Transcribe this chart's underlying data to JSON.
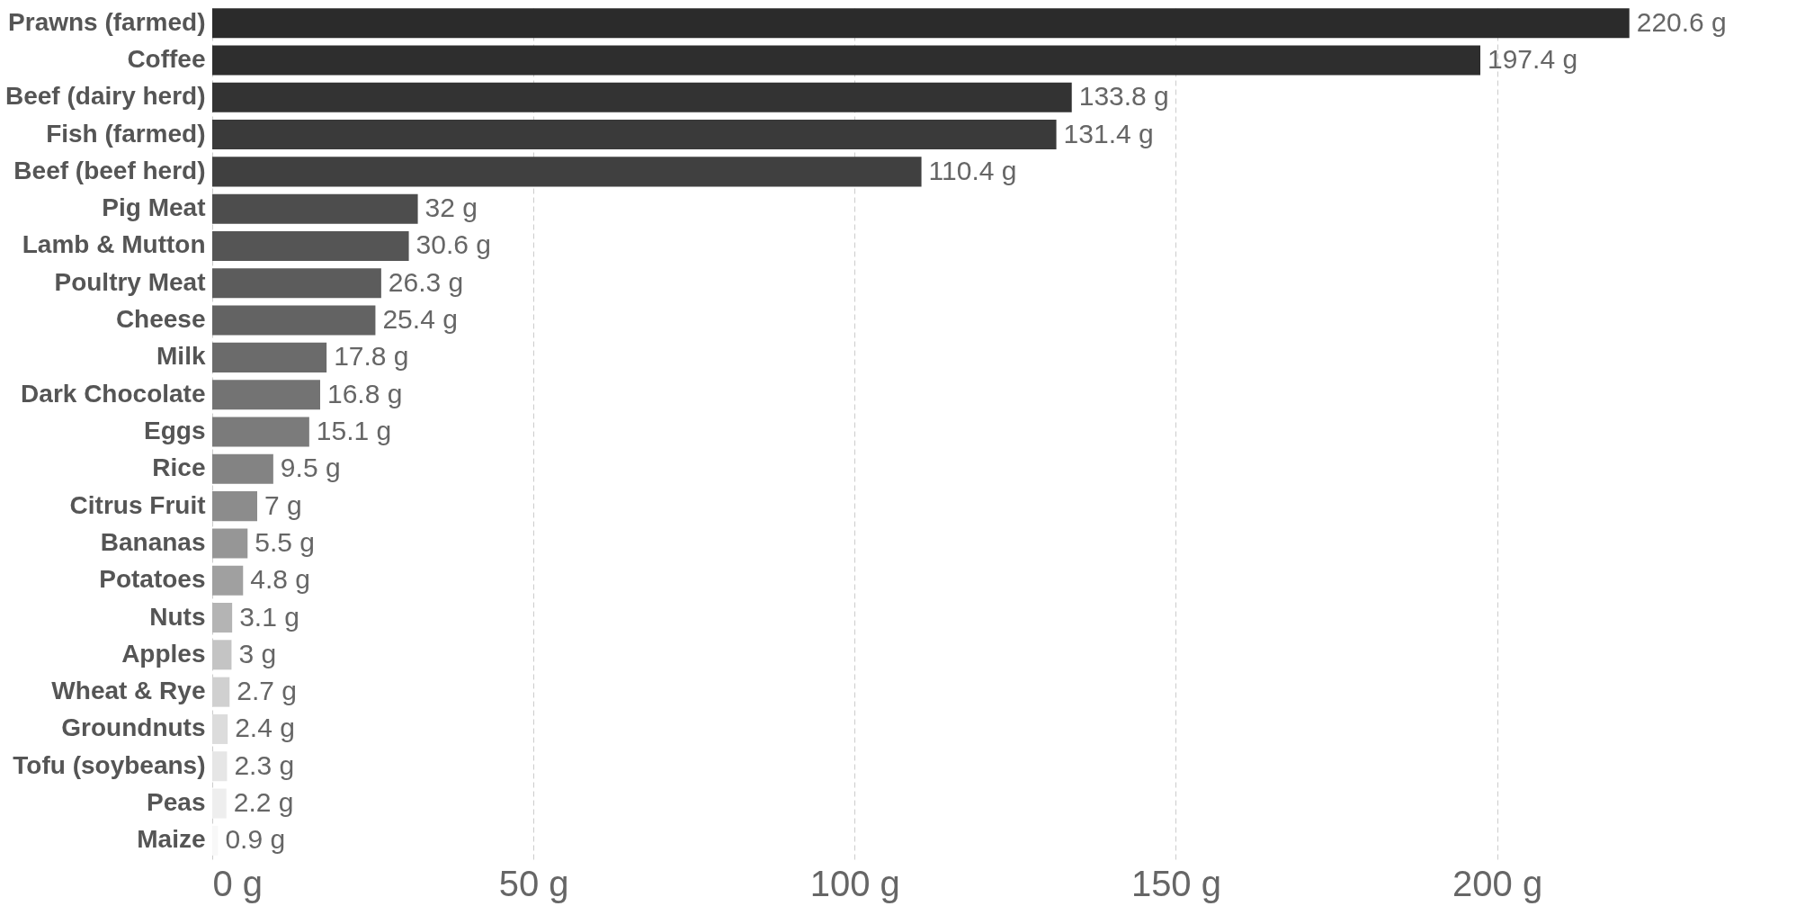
{
  "chart_data": {
    "type": "bar",
    "orientation": "horizontal",
    "categories": [
      "Prawns (farmed)",
      "Coffee",
      "Beef (dairy herd)",
      "Fish (farmed)",
      "Beef (beef herd)",
      "Pig Meat",
      "Lamb & Mutton",
      "Poultry Meat",
      "Cheese",
      "Milk",
      "Dark Chocolate",
      "Eggs",
      "Rice",
      "Citrus Fruit",
      "Bananas",
      "Potatoes",
      "Nuts",
      "Apples",
      "Wheat & Rye",
      "Groundnuts",
      "Tofu (soybeans)",
      "Peas",
      "Maize"
    ],
    "values": [
      220.6,
      197.4,
      133.8,
      131.4,
      110.4,
      32,
      30.6,
      26.3,
      25.4,
      17.8,
      16.8,
      15.1,
      9.5,
      7,
      5.5,
      4.8,
      3.1,
      3,
      2.7,
      2.4,
      2.3,
      2.2,
      0.9
    ],
    "value_labels": [
      "220.6 g",
      "197.4 g",
      "133.8 g",
      "131.4 g",
      "110.4 g",
      "32 g",
      "30.6 g",
      "26.3 g",
      "25.4 g",
      "17.8 g",
      "16.8 g",
      "15.1 g",
      "9.5 g",
      "7 g",
      "5.5 g",
      "4.8 g",
      "3.1 g",
      "3 g",
      "2.7 g",
      "2.4 g",
      "2.3 g",
      "2.2 g",
      "0.9 g"
    ],
    "colors": [
      "#2b2b2b",
      "#2e2e2e",
      "#333333",
      "#3a3a3a",
      "#404040",
      "#4d4d4d",
      "#555555",
      "#5c5c5c",
      "#636363",
      "#6b6b6b",
      "#737373",
      "#7b7b7b",
      "#838383",
      "#8c8c8c",
      "#969696",
      "#a0a0a0",
      "#b4b4b4",
      "#c4c4c4",
      "#d0d0d0",
      "#dcdcdc",
      "#e6e6e6",
      "#eeeeee",
      "#f8f8f8"
    ],
    "xlim": [
      0,
      238
    ],
    "xticks": [
      {
        "value": 0,
        "label": "0 g"
      },
      {
        "value": 50,
        "label": "50 g"
      },
      {
        "value": 100,
        "label": "100 g"
      },
      {
        "value": 150,
        "label": "150 g"
      },
      {
        "value": 200,
        "label": "200 g"
      }
    ],
    "grid": "x"
  }
}
